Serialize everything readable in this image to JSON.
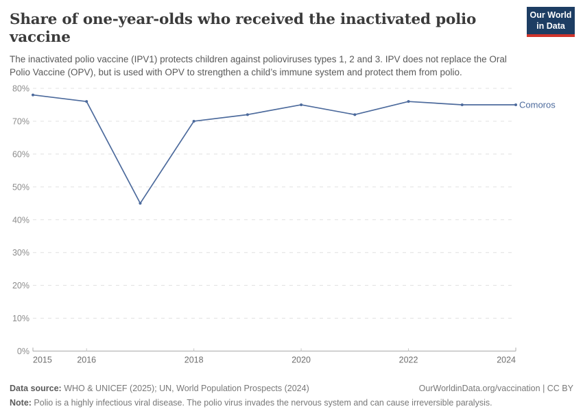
{
  "header": {
    "title": "Share of one-year-olds who received the inactivated polio vaccine",
    "subtitle": "The inactivated polio vaccine (IPV1) protects children against polioviruses types 1, 2 and 3. IPV does not replace the Oral Polio Vaccine (OPV), but is used with OPV to strengthen a child’s immune system and protect them from polio.",
    "logo": {
      "line1": "Our World",
      "line2": "in Data",
      "bg_color": "#1d3d63",
      "accent_color": "#d0342c"
    }
  },
  "chart_data": {
    "type": "line",
    "title": "Share of one-year-olds who received the inactivated polio vaccine",
    "x": [
      2015,
      2016,
      2017,
      2018,
      2019,
      2020,
      2021,
      2022,
      2023,
      2024
    ],
    "series": [
      {
        "name": "Comoros",
        "values": [
          78,
          76,
          45,
          70,
          72,
          75,
          72,
          76,
          75,
          75
        ],
        "color": "#4C6A9C"
      }
    ],
    "ylim": [
      0,
      80
    ],
    "yticks": [
      0,
      10,
      20,
      30,
      40,
      50,
      60,
      70,
      80
    ],
    "ytick_suffix": "%",
    "xticks_labeled": [
      2015,
      2016,
      2018,
      2020,
      2022,
      2024
    ],
    "grid": "horizontal-dashed",
    "legend_position": "end-of-line",
    "colors": {
      "grid": "#e0e0e0",
      "axis": "#a8a8a8",
      "tick": "#c6c6c6",
      "ytick_label": "#8c8c8c",
      "xtick_label": "#6e6e6e"
    }
  },
  "footer": {
    "data_source_label": "Data source:",
    "data_source_text": " WHO & UNICEF (2025); UN, World Population Prospects (2024)",
    "license_text": "OurWorldinData.org/vaccination | CC BY",
    "note_label": "Note:",
    "note_text": " Polio is a highly infectious viral disease. The polio virus invades the nervous system and can cause irreversible paralysis."
  }
}
